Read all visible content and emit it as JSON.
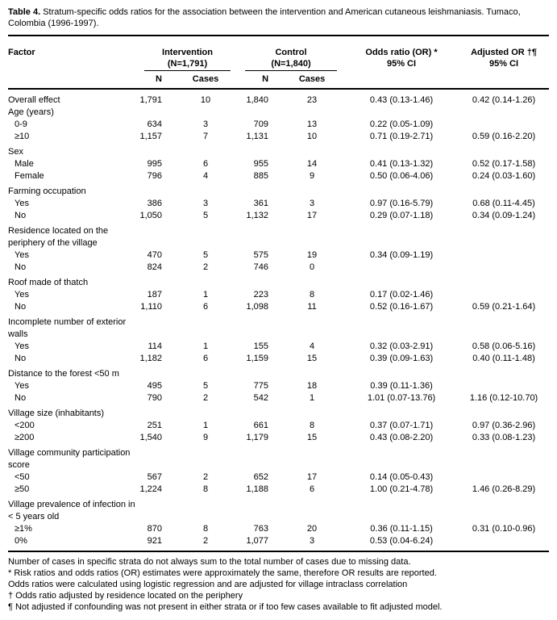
{
  "title": {
    "label": "Table 4.",
    "text": " Stratum-specific odds ratios for the association between the intervention and American cutaneous leishmaniasis. Tumaco, Colombia (1996-1997)."
  },
  "header": {
    "factor": "Factor",
    "intervention_label": "Intervention",
    "intervention_n": "(N=1,791)",
    "control_label": "Control",
    "control_n": "(N=1,840)",
    "or_line1": "Odds ratio (OR) *",
    "or_line2": "95% CI",
    "adj_line1": "Adjusted OR †¶",
    "adj_line2": "95% CI",
    "sub_n": "N",
    "sub_cases": "Cases"
  },
  "rows": [
    {
      "factor": "Overall effect",
      "indent": false,
      "gap": false,
      "cells": [
        "1,791",
        "10",
        "1,840",
        "23",
        "0.43 (0.13-1.46)",
        "0.42 (0.14-1.26)"
      ]
    },
    {
      "factor": "Age (years)",
      "indent": false,
      "gap": false,
      "cells": [
        "",
        "",
        "",
        "",
        "",
        ""
      ]
    },
    {
      "factor": "0-9",
      "indent": true,
      "gap": false,
      "cells": [
        "634",
        "3",
        "709",
        "13",
        "0.22 (0.05-1.09)",
        ""
      ]
    },
    {
      "factor": "≥10",
      "indent": true,
      "gap": false,
      "cells": [
        "1,157",
        "7",
        "1,131",
        "10",
        "0.71 (0.19-2.71)",
        "0.59 (0.16-2.20)"
      ]
    },
    {
      "factor": "Sex",
      "indent": false,
      "gap": true,
      "cells": [
        "",
        "",
        "",
        "",
        "",
        ""
      ]
    },
    {
      "factor": "Male",
      "indent": true,
      "gap": false,
      "cells": [
        "995",
        "6",
        "955",
        "14",
        "0.41 (0.13-1.32)",
        "0.52 (0.17-1.58)"
      ]
    },
    {
      "factor": "Female",
      "indent": true,
      "gap": false,
      "cells": [
        "796",
        "4",
        "885",
        "9",
        "0.50 (0.06-4.06)",
        "0.24 (0.03-1.60)"
      ]
    },
    {
      "factor": "Farming occupation",
      "indent": false,
      "gap": true,
      "cells": [
        "",
        "",
        "",
        "",
        "",
        ""
      ]
    },
    {
      "factor": "Yes",
      "indent": true,
      "gap": false,
      "cells": [
        "386",
        "3",
        "361",
        "3",
        "0.97 (0.16-5.79)",
        "0.68 (0.11-4.45)"
      ]
    },
    {
      "factor": "No",
      "indent": true,
      "gap": false,
      "cells": [
        "1,050",
        "5",
        "1,132",
        "17",
        "0.29 (0.07-1.18)",
        "0.34 (0.09-1.24)"
      ]
    },
    {
      "factor": "Residence located on the periphery of the village",
      "indent": false,
      "gap": true,
      "cells": [
        "",
        "",
        "",
        "",
        "",
        ""
      ]
    },
    {
      "factor": "Yes",
      "indent": true,
      "gap": false,
      "cells": [
        "470",
        "5",
        "575",
        "19",
        "0.34 (0.09-1.19)",
        ""
      ]
    },
    {
      "factor": "No",
      "indent": true,
      "gap": false,
      "cells": [
        "824",
        "2",
        "746",
        "0",
        "",
        ""
      ]
    },
    {
      "factor": "Roof made of thatch",
      "indent": false,
      "gap": true,
      "cells": [
        "",
        "",
        "",
        "",
        "",
        ""
      ]
    },
    {
      "factor": "Yes",
      "indent": true,
      "gap": false,
      "cells": [
        "187",
        "1",
        "223",
        "8",
        "0.17 (0.02-1.46)",
        ""
      ]
    },
    {
      "factor": "No",
      "indent": true,
      "gap": false,
      "cells": [
        "1,110",
        "6",
        "1,098",
        "11",
        "0.52 (0.16-1.67)",
        "0.59 (0.21-1.64)"
      ]
    },
    {
      "factor": "Incomplete number of exterior walls",
      "indent": false,
      "gap": true,
      "cells": [
        "",
        "",
        "",
        "",
        "",
        ""
      ]
    },
    {
      "factor": "Yes",
      "indent": true,
      "gap": false,
      "cells": [
        "114",
        "1",
        "155",
        "4",
        "0.32 (0.03-2.91)",
        "0.58 (0.06-5.16)"
      ]
    },
    {
      "factor": "No",
      "indent": true,
      "gap": false,
      "cells": [
        "1,182",
        "6",
        "1,159",
        "15",
        "0.39 (0.09-1.63)",
        "0.40 (0.11-1.48)"
      ]
    },
    {
      "factor": "Distance to the forest <50 m",
      "indent": false,
      "gap": true,
      "cells": [
        "",
        "",
        "",
        "",
        "",
        ""
      ]
    },
    {
      "factor": "Yes",
      "indent": true,
      "gap": false,
      "cells": [
        "495",
        "5",
        "775",
        "18",
        "0.39 (0.11-1.36)",
        ""
      ]
    },
    {
      "factor": "No",
      "indent": true,
      "gap": false,
      "cells": [
        "790",
        "2",
        "542",
        "1",
        "1.01 (0.07-13.76)",
        "1.16 (0.12-10.70)"
      ]
    },
    {
      "factor": "Village size (inhabitants)",
      "indent": false,
      "gap": true,
      "cells": [
        "",
        "",
        "",
        "",
        "",
        ""
      ]
    },
    {
      "factor": "<200",
      "indent": true,
      "gap": false,
      "cells": [
        "251",
        "1",
        "661",
        "8",
        "0.37 (0.07-1.71)",
        "0.97 (0.36-2.96)"
      ]
    },
    {
      "factor": "≥200",
      "indent": true,
      "gap": false,
      "cells": [
        "1,540",
        "9",
        "1,179",
        "15",
        "0.43 (0.08-2.20)",
        "0.33 (0.08-1.23)"
      ]
    },
    {
      "factor": "Village community participation score",
      "indent": false,
      "gap": true,
      "cells": [
        "",
        "",
        "",
        "",
        "",
        ""
      ]
    },
    {
      "factor": "<50",
      "indent": true,
      "gap": false,
      "cells": [
        "567",
        "2",
        "652",
        "17",
        "0.14 (0.05-0.43)",
        ""
      ]
    },
    {
      "factor": "≥50",
      "indent": true,
      "gap": false,
      "cells": [
        "1,224",
        "8",
        "1,188",
        "6",
        "1.00 (0.21-4.78)",
        "1.46 (0.26-8.29)"
      ]
    },
    {
      "factor": "Village prevalence of infection in < 5 years old",
      "indent": false,
      "gap": true,
      "cells": [
        "",
        "",
        "",
        "",
        "",
        ""
      ]
    },
    {
      "factor": "≥1%",
      "indent": true,
      "gap": false,
      "cells": [
        "870",
        "8",
        "763",
        "20",
        "0.36 (0.11-1.15)",
        "0.31 (0.10-0.96)"
      ]
    },
    {
      "factor": "0%",
      "indent": true,
      "gap": false,
      "cells": [
        "921",
        "2",
        "1,077",
        "3",
        "0.53 (0.04-6.24)",
        ""
      ]
    }
  ],
  "footnotes": [
    "Number of cases in specific strata do not always sum to the total number of cases due to missing data.",
    "* Risk ratios and odds ratios (OR) estimates were approximately the same, therefore OR results are reported.",
    "Odds ratios were calculated using logistic regression and are adjusted for village intraclass correlation",
    "† Odds ratio adjusted by residence located on the periphery",
    "¶ Not adjusted if confounding was not present in either strata or if too few cases available to fit adjusted model."
  ]
}
